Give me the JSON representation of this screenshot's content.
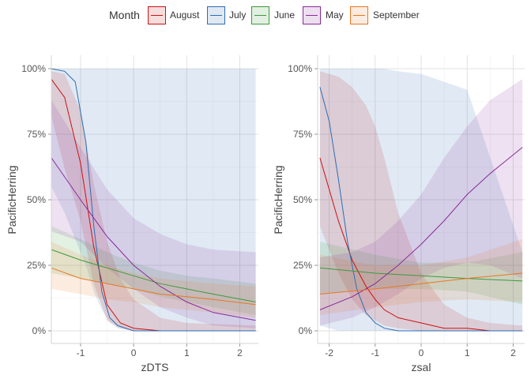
{
  "legend": {
    "title": "Month",
    "entries": [
      {
        "label": "August",
        "color": "#cc1111"
      },
      {
        "label": "July",
        "color": "#2e6db0"
      },
      {
        "label": "June",
        "color": "#3c9a3c"
      },
      {
        "label": "May",
        "color": "#8a2b9a"
      },
      {
        "label": "September",
        "color": "#e87722"
      }
    ]
  },
  "chart_data": [
    {
      "type": "line",
      "xlabel": "zDTS",
      "ylabel": "PacificHerring",
      "xlim": [
        -1.55,
        2.35
      ],
      "ylim": [
        0,
        1
      ],
      "xticks": [
        -1,
        0,
        1,
        2
      ],
      "xtick_labels": [
        "-1",
        "0",
        "1",
        "2"
      ],
      "yticks": [
        0,
        0.25,
        0.5,
        0.75,
        1
      ],
      "ytick_labels": [
        "0%",
        "25%",
        "50%",
        "75%",
        "100%"
      ],
      "grid": true,
      "series": [
        {
          "name": "August",
          "color": "#cc1111",
          "x": [
            -1.55,
            -1.3,
            -1.0,
            -0.75,
            -0.5,
            -0.25,
            0.0,
            0.5,
            1.0,
            2.3
          ],
          "y": [
            0.96,
            0.89,
            0.64,
            0.32,
            0.1,
            0.03,
            0.01,
            0.0,
            0.0,
            0.0
          ],
          "lower": [
            0.82,
            0.62,
            0.42,
            0.18,
            0.04,
            0.01,
            0.0,
            0.0,
            0.0,
            0.0
          ],
          "upper": [
            0.99,
            0.98,
            0.84,
            0.56,
            0.34,
            0.2,
            0.12,
            0.05,
            0.03,
            0.02
          ]
        },
        {
          "name": "July",
          "color": "#2e6db0",
          "x": [
            -1.55,
            -1.3,
            -1.1,
            -0.9,
            -0.75,
            -0.6,
            -0.45,
            -0.3,
            0.0,
            0.5,
            2.3
          ],
          "y": [
            1.0,
            0.99,
            0.95,
            0.72,
            0.4,
            0.15,
            0.05,
            0.02,
            0.0,
            0.0,
            0.0
          ],
          "lower": [
            0.55,
            0.45,
            0.35,
            0.25,
            0.15,
            0.08,
            0.03,
            0.01,
            0.0,
            0.0,
            0.0
          ],
          "upper": [
            1.0,
            1.0,
            1.0,
            1.0,
            1.0,
            1.0,
            1.0,
            1.0,
            1.0,
            1.0,
            1.0
          ]
        },
        {
          "name": "June",
          "color": "#3c9a3c",
          "x": [
            -1.55,
            -1.0,
            -0.5,
            0.0,
            0.5,
            1.0,
            1.5,
            2.3
          ],
          "y": [
            0.31,
            0.27,
            0.24,
            0.21,
            0.18,
            0.16,
            0.14,
            0.11
          ],
          "lower": [
            0.22,
            0.2,
            0.18,
            0.16,
            0.13,
            0.11,
            0.09,
            0.06
          ],
          "upper": [
            0.4,
            0.35,
            0.3,
            0.26,
            0.23,
            0.21,
            0.2,
            0.18
          ]
        },
        {
          "name": "May",
          "color": "#8a2b9a",
          "x": [
            -1.55,
            -1.0,
            -0.5,
            0.0,
            0.5,
            1.0,
            1.5,
            2.3
          ],
          "y": [
            0.66,
            0.5,
            0.36,
            0.25,
            0.17,
            0.11,
            0.07,
            0.04
          ],
          "lower": [
            0.38,
            0.34,
            0.24,
            0.16,
            0.09,
            0.05,
            0.02,
            0.01
          ],
          "upper": [
            0.88,
            0.7,
            0.54,
            0.43,
            0.37,
            0.33,
            0.31,
            0.3
          ]
        },
        {
          "name": "September",
          "color": "#e87722",
          "x": [
            -1.55,
            -1.0,
            -0.5,
            0.0,
            0.5,
            1.0,
            1.5,
            2.3
          ],
          "y": [
            0.24,
            0.2,
            0.18,
            0.16,
            0.14,
            0.13,
            0.12,
            0.1
          ],
          "lower": [
            0.16,
            0.14,
            0.12,
            0.11,
            0.09,
            0.08,
            0.07,
            0.05
          ],
          "upper": [
            0.34,
            0.29,
            0.25,
            0.22,
            0.2,
            0.19,
            0.18,
            0.17
          ]
        }
      ]
    },
    {
      "type": "line",
      "xlabel": "zsal",
      "ylabel": "PacificHerring",
      "xlim": [
        -2.25,
        2.25
      ],
      "ylim": [
        0,
        1
      ],
      "xticks": [
        -2,
        -1,
        0,
        1,
        2
      ],
      "xtick_labels": [
        "-2",
        "-1",
        "0",
        "1",
        "2"
      ],
      "yticks": [
        0,
        0.25,
        0.5,
        0.75,
        1
      ],
      "ytick_labels": [
        "0%",
        "25%",
        "50%",
        "75%",
        "100%"
      ],
      "grid": true,
      "series": [
        {
          "name": "August",
          "color": "#cc1111",
          "x": [
            -2.2,
            -1.8,
            -1.5,
            -1.2,
            -1.0,
            -0.8,
            -0.5,
            0.0,
            0.5,
            1.0,
            1.5,
            2.2
          ],
          "y": [
            0.66,
            0.42,
            0.27,
            0.17,
            0.12,
            0.08,
            0.05,
            0.03,
            0.01,
            0.01,
            0.0,
            0.0
          ],
          "lower": [
            0.4,
            0.22,
            0.12,
            0.06,
            0.04,
            0.02,
            0.01,
            0.0,
            0.0,
            0.0,
            0.0,
            0.0
          ],
          "upper": [
            0.99,
            0.97,
            0.93,
            0.86,
            0.78,
            0.66,
            0.45,
            0.22,
            0.1,
            0.05,
            0.03,
            0.02
          ]
        },
        {
          "name": "July",
          "color": "#2e6db0",
          "x": [
            -2.2,
            -2.0,
            -1.8,
            -1.6,
            -1.4,
            -1.2,
            -1.0,
            -0.8,
            -0.5,
            0.0,
            1.0,
            2.2
          ],
          "y": [
            0.93,
            0.8,
            0.58,
            0.34,
            0.16,
            0.07,
            0.03,
            0.01,
            0.0,
            0.0,
            0.0,
            0.0
          ],
          "lower": [
            0.02,
            0.01,
            0.0,
            0.0,
            0.0,
            0.0,
            0.0,
            0.0,
            0.0,
            0.0,
            0.0,
            0.0
          ],
          "upper": [
            1.0,
            1.0,
            1.0,
            1.0,
            1.0,
            1.0,
            1.0,
            1.0,
            0.99,
            0.98,
            0.92,
            0.3
          ]
        },
        {
          "name": "June",
          "color": "#3c9a3c",
          "x": [
            -2.2,
            -1.0,
            0.0,
            1.0,
            2.2
          ],
          "y": [
            0.24,
            0.22,
            0.21,
            0.2,
            0.19
          ],
          "lower": [
            0.14,
            0.16,
            0.16,
            0.15,
            0.1
          ],
          "upper": [
            0.34,
            0.29,
            0.26,
            0.26,
            0.3
          ]
        },
        {
          "name": "May",
          "color": "#8a2b9a",
          "x": [
            -2.2,
            -1.5,
            -1.0,
            -0.5,
            0.0,
            0.5,
            1.0,
            1.5,
            2.2
          ],
          "y": [
            0.08,
            0.13,
            0.18,
            0.25,
            0.33,
            0.42,
            0.52,
            0.6,
            0.7
          ],
          "lower": [
            0.02,
            0.05,
            0.09,
            0.14,
            0.2,
            0.24,
            0.26,
            0.25,
            0.2
          ],
          "upper": [
            0.28,
            0.3,
            0.34,
            0.42,
            0.52,
            0.66,
            0.78,
            0.88,
            0.96
          ]
        },
        {
          "name": "September",
          "color": "#e87722",
          "x": [
            -2.2,
            -1.0,
            0.0,
            1.0,
            2.2
          ],
          "y": [
            0.14,
            0.16,
            0.18,
            0.2,
            0.22
          ],
          "lower": [
            0.06,
            0.09,
            0.11,
            0.12,
            0.11
          ],
          "upper": [
            0.29,
            0.25,
            0.25,
            0.28,
            0.35
          ]
        }
      ]
    }
  ]
}
